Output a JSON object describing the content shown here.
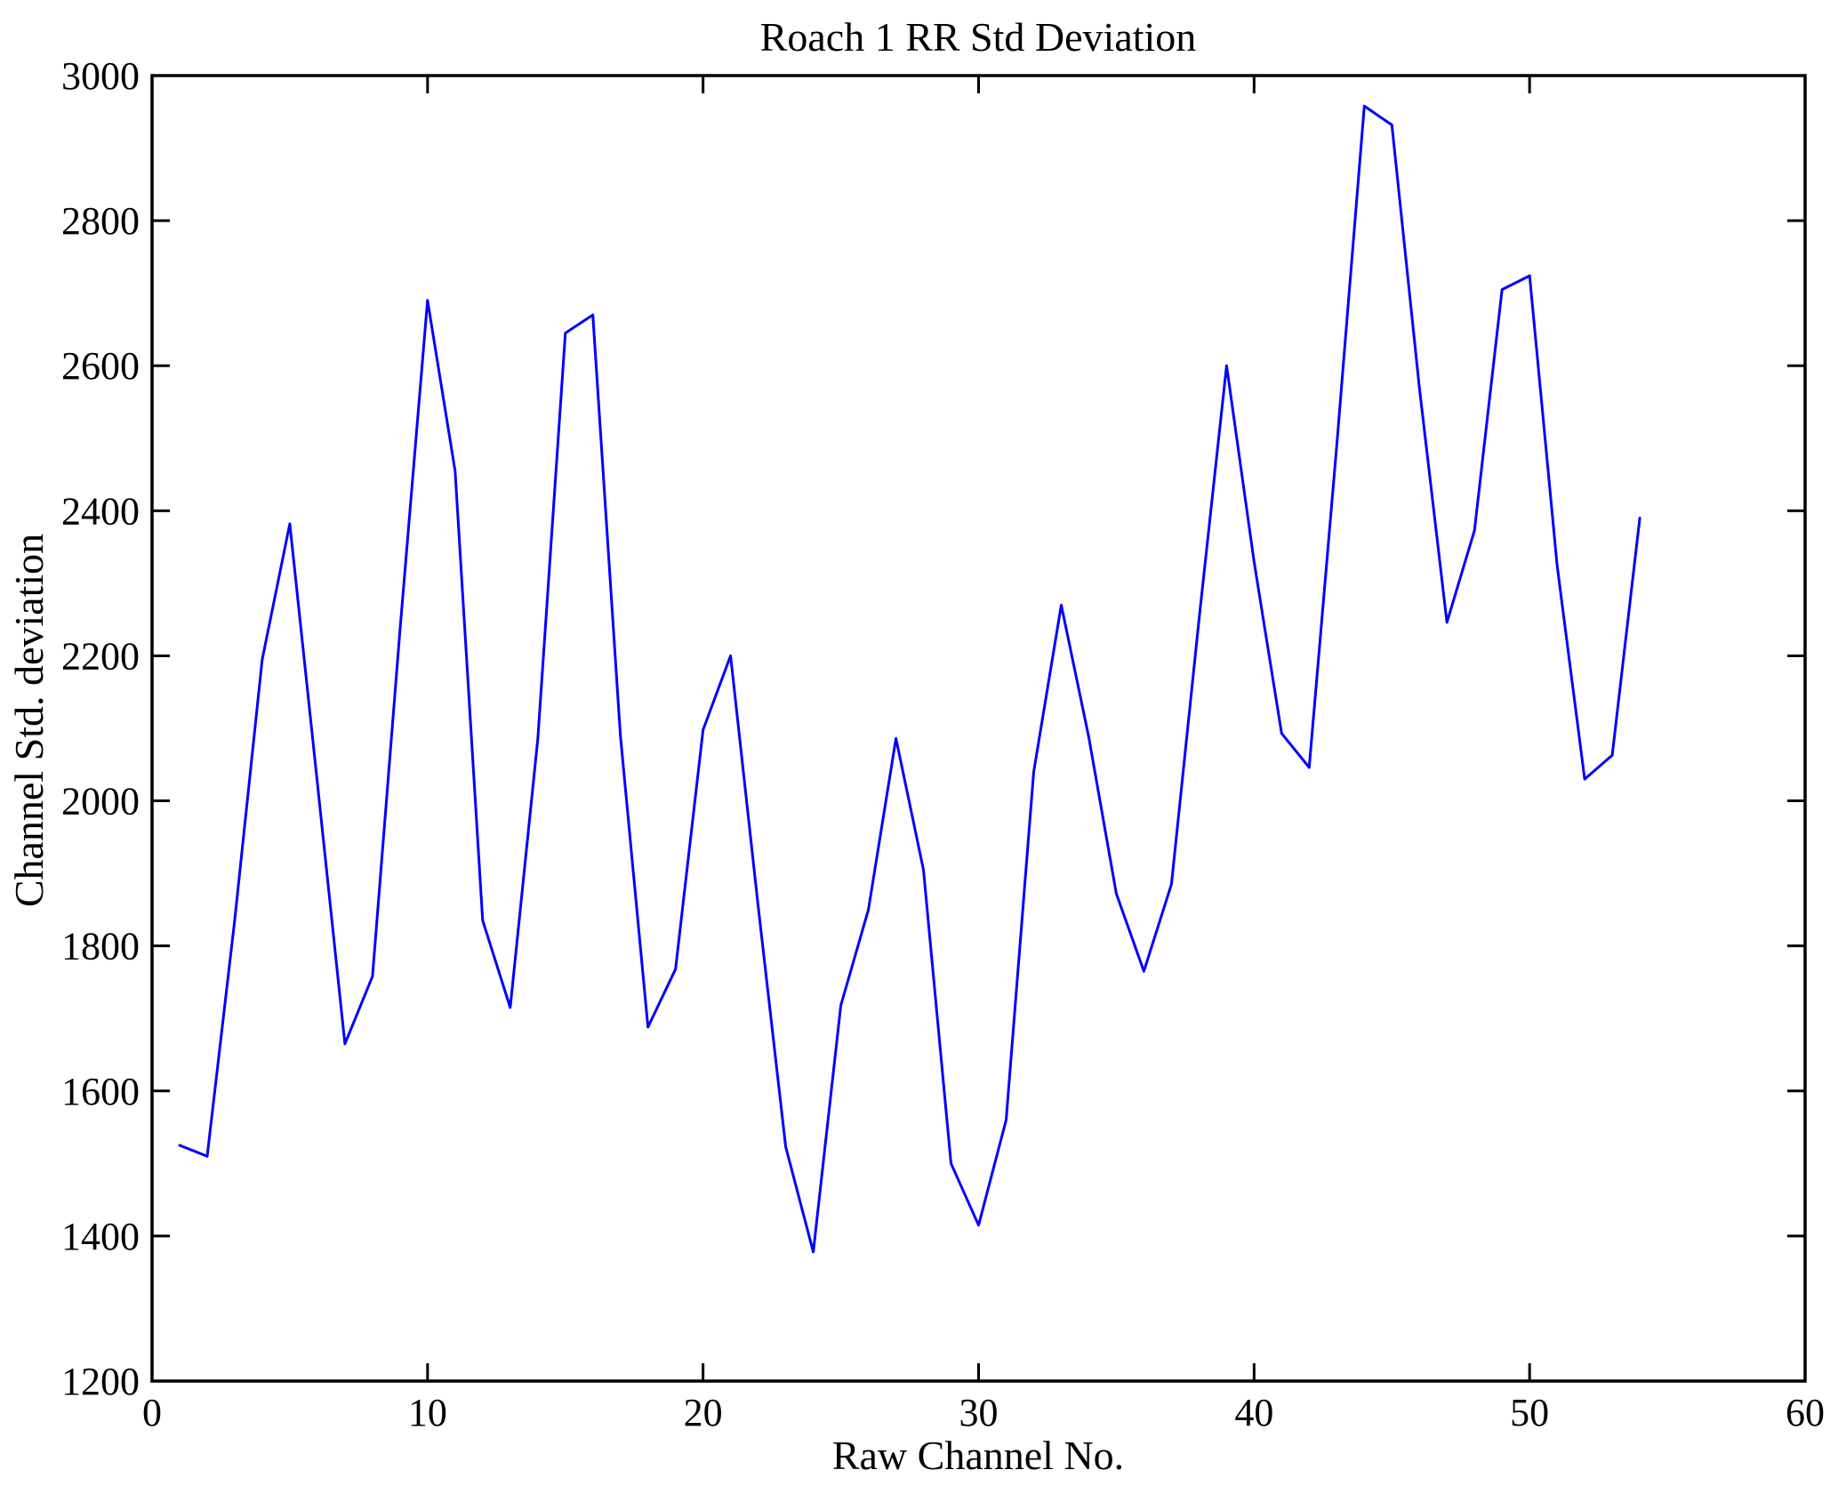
{
  "chart_data": {
    "type": "line",
    "title": "Roach 1 RR Std Deviation",
    "xlabel": "Raw Channel No.",
    "ylabel": "Channel Std. deviation",
    "xlim": [
      0,
      60
    ],
    "ylim": [
      1200,
      3000
    ],
    "x_ticks": [
      0,
      10,
      20,
      30,
      40,
      50,
      60
    ],
    "y_ticks": [
      1200,
      1400,
      1600,
      1800,
      2000,
      2200,
      2400,
      2600,
      2800,
      3000
    ],
    "grid": false,
    "legend": null,
    "line_color": "#0000FF",
    "axis_color": "#000000",
    "background_color": "#FFFFFF",
    "series": [
      {
        "name": "Channel Std. deviation",
        "x": [
          1,
          2,
          3,
          4,
          5,
          6,
          7,
          8,
          9,
          10,
          11,
          12,
          13,
          14,
          15,
          16,
          17,
          18,
          19,
          20,
          21,
          22,
          23,
          24,
          25,
          26,
          27,
          28,
          29,
          30,
          31,
          32,
          33,
          34,
          35,
          36,
          37,
          38,
          39,
          40,
          41,
          42,
          43,
          44,
          45,
          46,
          47,
          48,
          49,
          50,
          51,
          52,
          53,
          54
        ],
        "values": [
          1525,
          1510,
          1835,
          2195,
          2382,
          2025,
          1665,
          1758,
          2235,
          2690,
          2455,
          1835,
          1715,
          2085,
          2645,
          2670,
          2090,
          1688,
          1768,
          2098,
          2200,
          1855,
          1523,
          1378,
          1718,
          1850,
          2086,
          1905,
          1500,
          1415,
          1560,
          2040,
          2270,
          2088,
          1872,
          1765,
          1885,
          2250,
          2600,
          2330,
          2093,
          2046,
          2490,
          2958,
          2932,
          2570,
          2246,
          2373,
          2705,
          2724,
          2325,
          2030,
          2063,
          2390
        ]
      }
    ]
  }
}
